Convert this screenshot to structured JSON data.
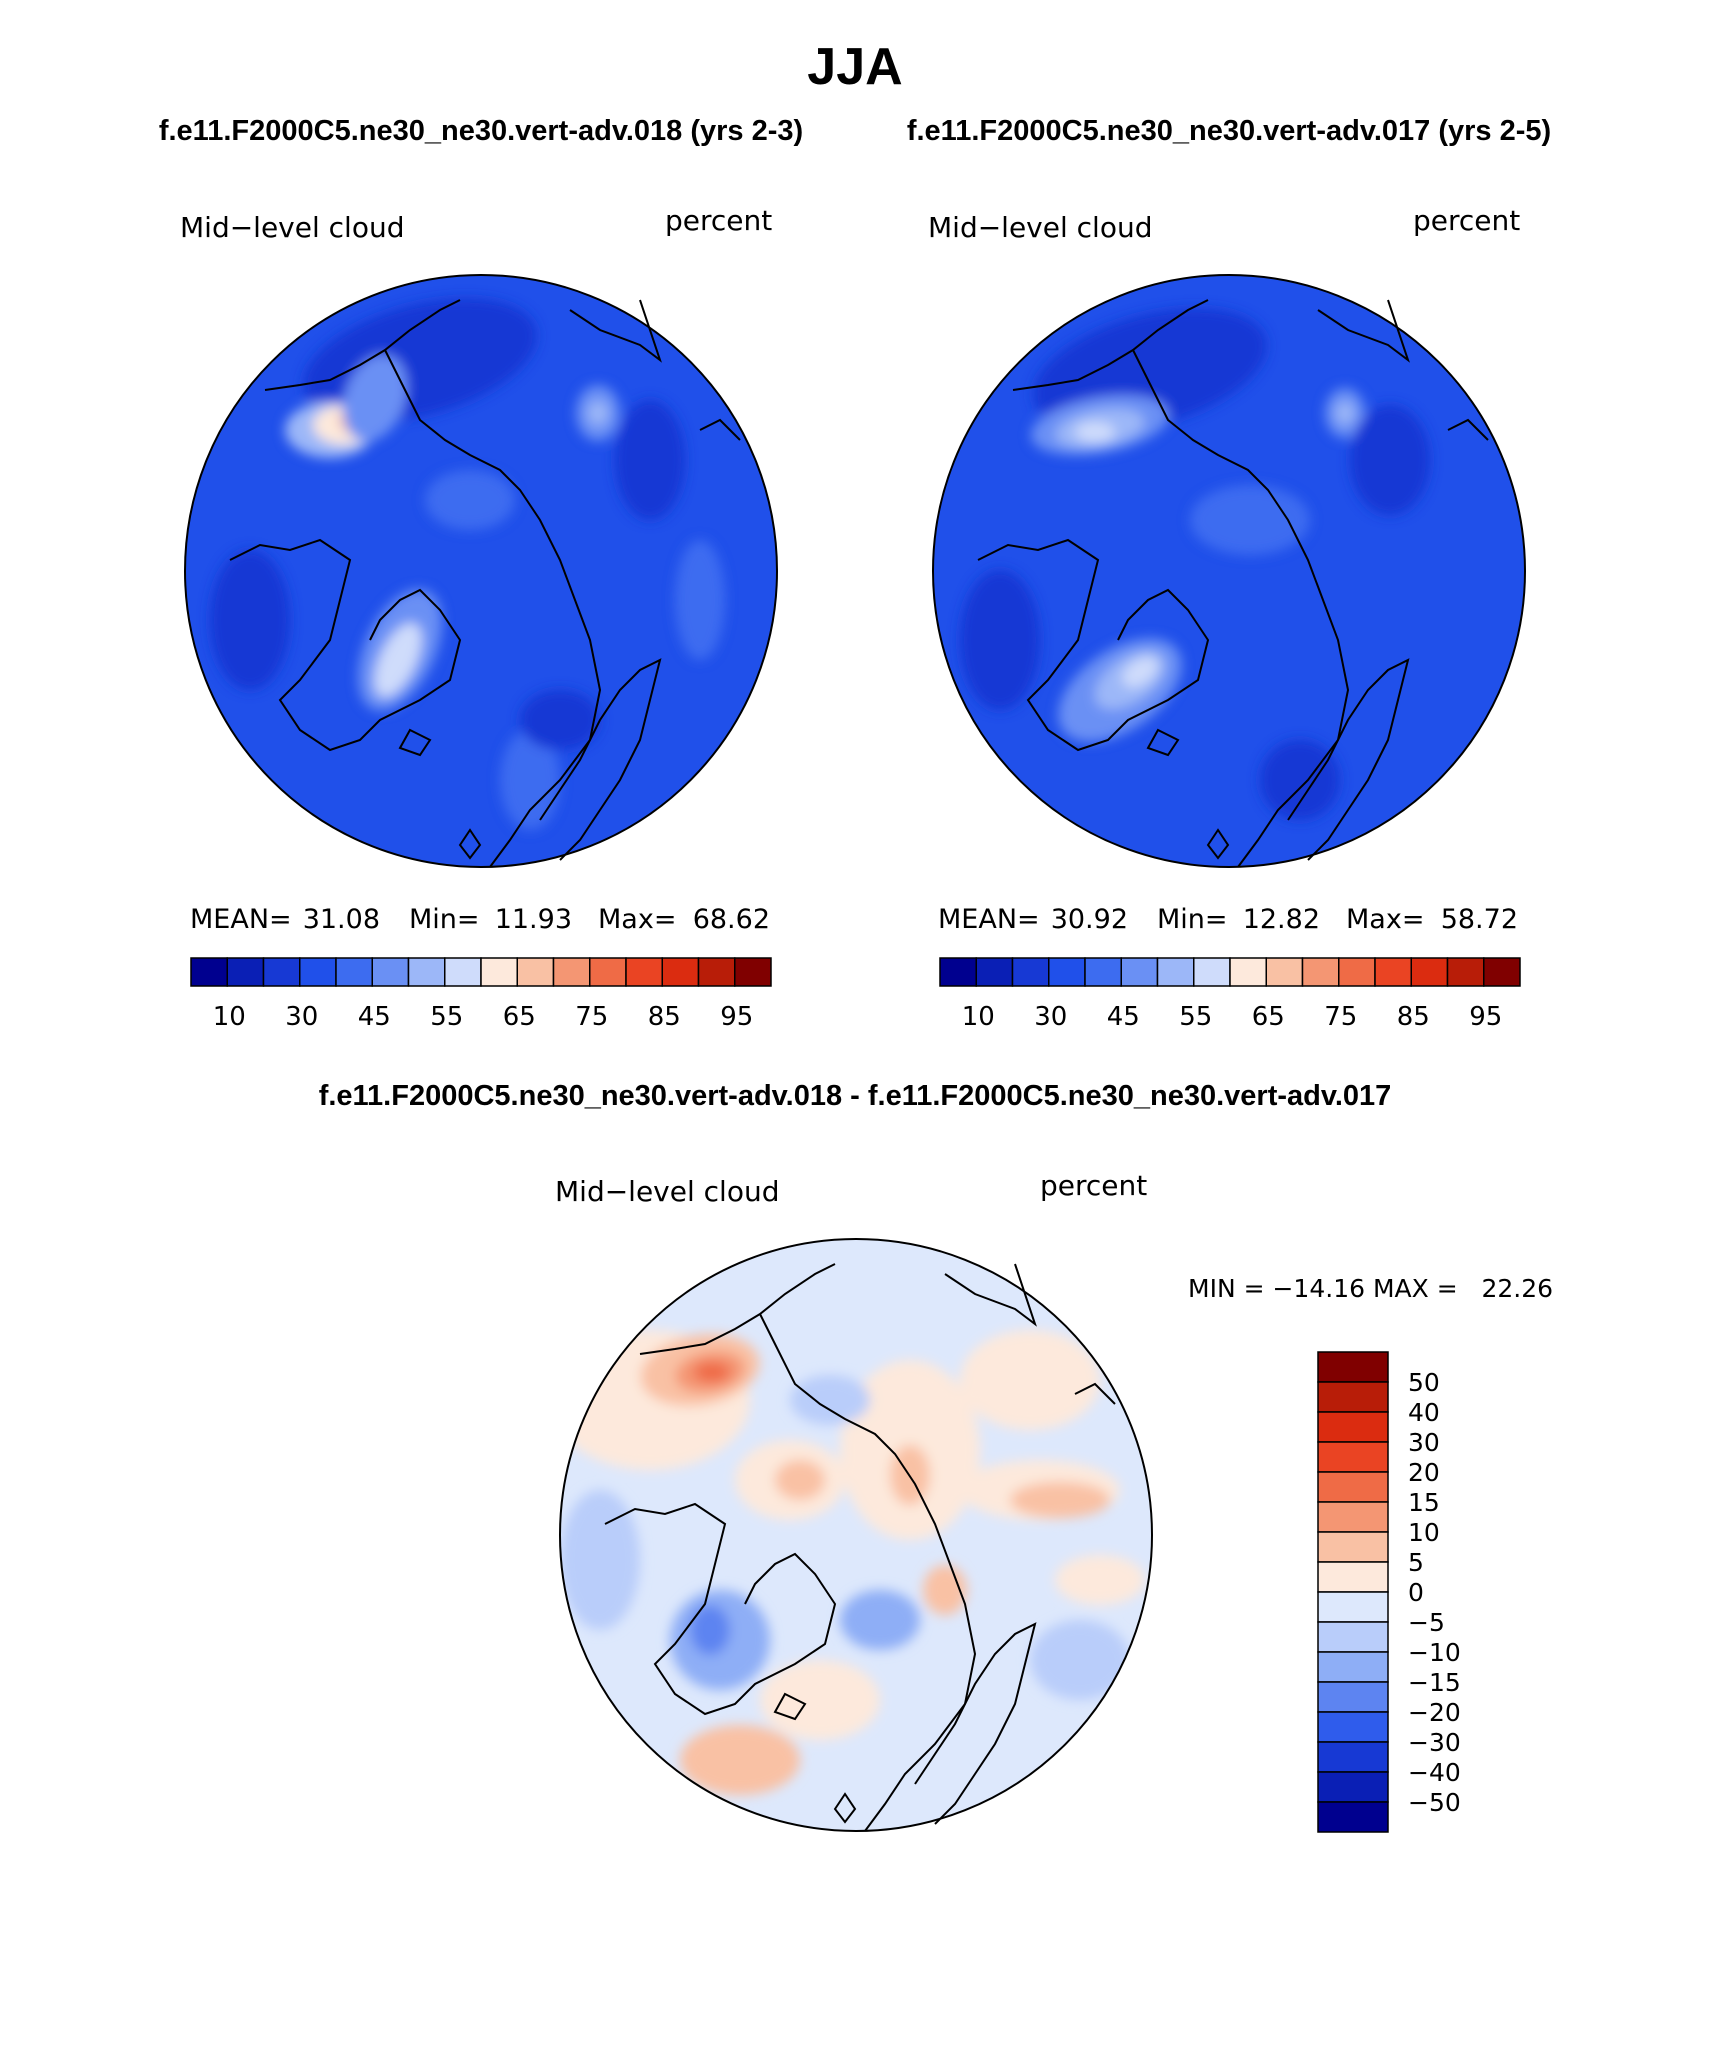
{
  "page": {
    "title": "JJA",
    "subtitle_left": "f.e11.F2000C5.ne30_ne30.vert-adv.018 (yrs 2-3)",
    "subtitle_right": "f.e11.F2000C5.ne30_ne30.vert-adv.017 (yrs 2-5)",
    "diff_title": "f.e11.F2000C5.ne30_ne30.vert-adv.018 - f.e11.F2000C5.ne30_ne30.vert-adv.017"
  },
  "chart_data": [
    {
      "type": "heatmap",
      "projection": "north polar stereographic",
      "variable": "Mid−level cloud",
      "units": "percent",
      "stats": {
        "mean_label": "MEAN=",
        "mean": "31.08",
        "min_label": "Min=",
        "min": "11.93",
        "max_label": "Max=",
        "max": "68.62"
      },
      "colorbar": {
        "orientation": "horizontal",
        "levels": [
          10,
          20,
          30,
          40,
          45,
          50,
          55,
          60,
          65,
          70,
          75,
          80,
          85,
          90,
          95
        ],
        "labels": [
          "10",
          "30",
          "45",
          "55",
          "65",
          "75",
          "85",
          "95"
        ],
        "colors": [
          "#00008f",
          "#0a1fb5",
          "#1739d4",
          "#2050ea",
          "#3d6cf0",
          "#6a90f4",
          "#9cb7f8",
          "#cfdcfb",
          "#fde9dc",
          "#f9c1a4",
          "#f49673",
          "#ef6b46",
          "#ea4423",
          "#db2c10",
          "#b81d08",
          "#800000"
        ]
      }
    },
    {
      "type": "heatmap",
      "projection": "north polar stereographic",
      "variable": "Mid−level cloud",
      "units": "percent",
      "stats": {
        "mean_label": "MEAN=",
        "mean": "30.92",
        "min_label": "Min=",
        "min": "12.82",
        "max_label": "Max=",
        "max": "58.72"
      },
      "colorbar": {
        "orientation": "horizontal",
        "levels": [
          10,
          20,
          30,
          40,
          45,
          50,
          55,
          60,
          65,
          70,
          75,
          80,
          85,
          90,
          95
        ],
        "labels": [
          "10",
          "30",
          "45",
          "55",
          "65",
          "75",
          "85",
          "95"
        ],
        "colors": [
          "#00008f",
          "#0a1fb5",
          "#1739d4",
          "#2050ea",
          "#3d6cf0",
          "#6a90f4",
          "#9cb7f8",
          "#cfdcfb",
          "#fde9dc",
          "#f9c1a4",
          "#f49673",
          "#ef6b46",
          "#ea4423",
          "#db2c10",
          "#b81d08",
          "#800000"
        ]
      }
    },
    {
      "type": "heatmap",
      "projection": "north polar stereographic",
      "variable": "Mid−level cloud",
      "units": "percent",
      "stats_text": "MIN = −14.16 MAX =   22.26",
      "colorbar": {
        "orientation": "vertical",
        "labels": [
          "50",
          "40",
          "30",
          "20",
          "15",
          "10",
          "5",
          "0",
          "−5",
          "−10",
          "−15",
          "−20",
          "−30",
          "−40",
          "−50"
        ],
        "colors": [
          "#800000",
          "#b81d08",
          "#db2c10",
          "#ea4423",
          "#ef6b46",
          "#f49673",
          "#f9c1a4",
          "#fde9dc",
          "#dde8fc",
          "#b9cdfa",
          "#8eaef6",
          "#5d84f1",
          "#2f5cec",
          "#1739d4",
          "#0a1fb5",
          "#00008f"
        ]
      }
    }
  ]
}
